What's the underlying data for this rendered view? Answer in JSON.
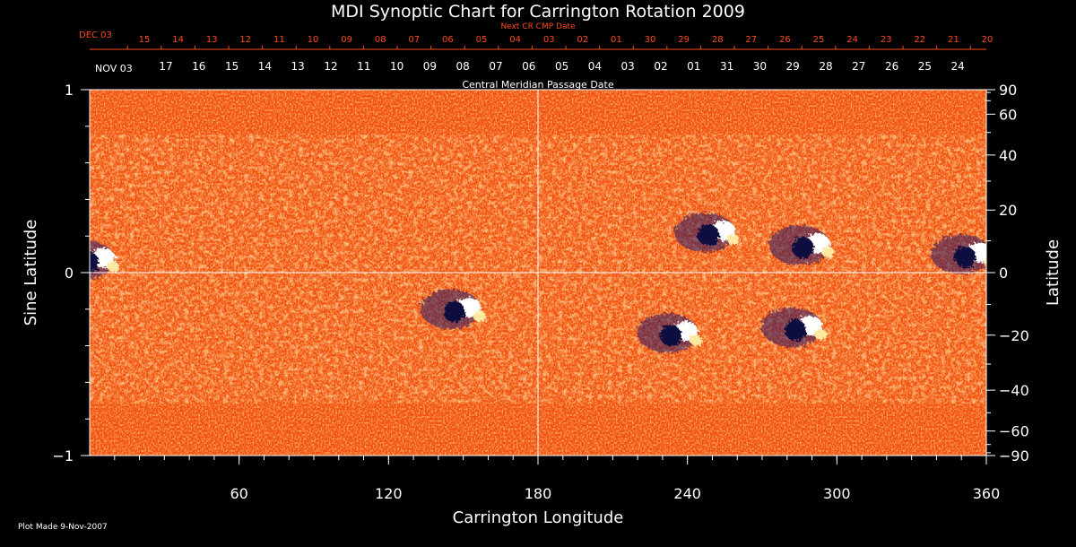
{
  "chart_data": {
    "type": "heatmap",
    "title": "MDI Synoptic Chart for Carrington Rotation 2009",
    "xlabel": "Carrington Longitude",
    "ylabel_left": "Sine Latitude",
    "ylabel_right": "Latitude",
    "xlim": [
      0,
      360
    ],
    "ylim": [
      -1,
      1
    ],
    "x_ticks": [
      "60",
      "120",
      "180",
      "240",
      "300",
      "360"
    ],
    "y_ticks_left": [
      "1",
      "0",
      "−1"
    ],
    "y_ticks_right": [
      "90",
      "60",
      "40",
      "20",
      "0",
      "−20",
      "−40",
      "−60",
      "−90"
    ],
    "top_axis_next": {
      "label": "Next CR CMP Date",
      "month_label": "DEC 03",
      "dates": [
        "15",
        "14",
        "13",
        "12",
        "11",
        "10",
        "09",
        "08",
        "07",
        "06",
        "05",
        "04",
        "03",
        "02",
        "01",
        "30",
        "29",
        "28",
        "27",
        "26",
        "25",
        "24",
        "23",
        "22",
        "21",
        "20"
      ]
    },
    "top_axis_cmp": {
      "label": "Central Meridian Passage Date",
      "month_label": "NOV 03",
      "dates": [
        "17",
        "16",
        "15",
        "14",
        "13",
        "12",
        "11",
        "10",
        "09",
        "08",
        "07",
        "06",
        "05",
        "04",
        "03",
        "02",
        "01",
        "31",
        "30",
        "29",
        "28",
        "27",
        "26",
        "25",
        "24"
      ]
    },
    "grid_lines": {
      "vertical_longitude": 180,
      "horizontal_sine_latitude": 0
    },
    "colormap": {
      "background": "#ff5a14",
      "positive": "#ffffff",
      "negative": "#101040"
    },
    "active_regions": [
      {
        "lon": 3,
        "sinlat": 0.07,
        "polarity": "mixed"
      },
      {
        "lon": 150,
        "sinlat": -0.2,
        "polarity": "mixed"
      },
      {
        "lon": 252,
        "sinlat": 0.22,
        "polarity": "mixed"
      },
      {
        "lon": 290,
        "sinlat": 0.15,
        "polarity": "mixed"
      },
      {
        "lon": 287,
        "sinlat": -0.3,
        "polarity": "mixed"
      },
      {
        "lon": 237,
        "sinlat": -0.33,
        "polarity": "mixed"
      },
      {
        "lon": 355,
        "sinlat": 0.1,
        "polarity": "mixed"
      }
    ]
  },
  "footer": {
    "plot_made": "Plot Made  9-Nov-2007"
  }
}
